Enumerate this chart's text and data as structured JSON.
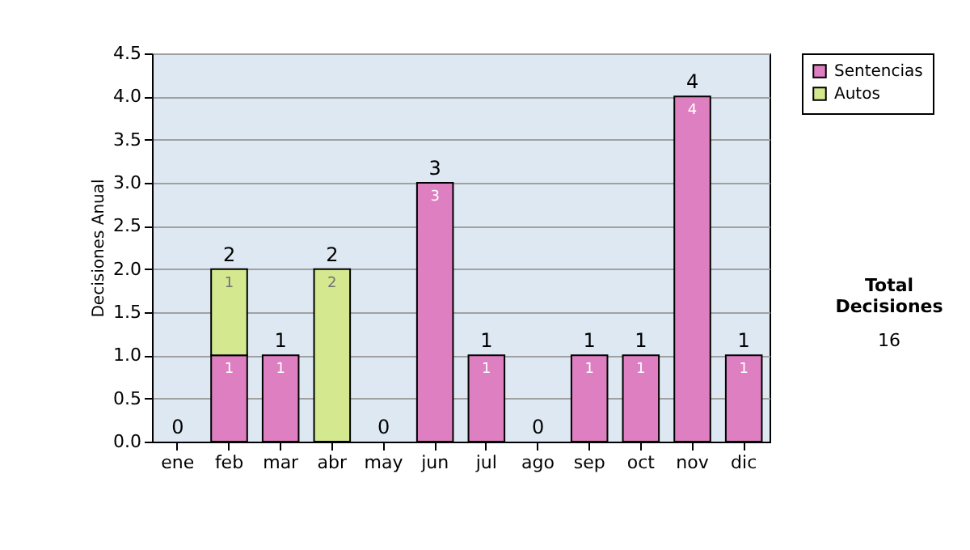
{
  "chart_data": {
    "type": "bar",
    "stacked": true,
    "ylabel": "Decisiones Anual",
    "categories": [
      "ene",
      "feb",
      "mar",
      "abr",
      "may",
      "jun",
      "jul",
      "ago",
      "sep",
      "oct",
      "nov",
      "dic"
    ],
    "series": [
      {
        "name": "Sentencias",
        "color": "#dd7fc0",
        "values": [
          0,
          1,
          1,
          0,
          0,
          3,
          1,
          0,
          1,
          1,
          4,
          1
        ],
        "value_labels": [
          null,
          "1",
          "1",
          null,
          null,
          "3",
          "1",
          null,
          "1",
          "1",
          "4",
          "1"
        ]
      },
      {
        "name": "Autos",
        "color": "#d4e98f",
        "values": [
          0,
          1,
          0,
          2,
          0,
          0,
          0,
          0,
          0,
          0,
          0,
          0
        ],
        "value_labels": [
          null,
          "1",
          null,
          "2",
          null,
          null,
          null,
          null,
          null,
          null,
          null,
          null
        ]
      }
    ],
    "totals": [
      "0",
      "2",
      "1",
      "2",
      "0",
      "3",
      "1",
      "0",
      "1",
      "1",
      "4",
      "1"
    ],
    "ylim": [
      0,
      4.5
    ],
    "yticks": [
      {
        "value": 0,
        "label": "0.0"
      },
      {
        "value": 0.5,
        "label": "0.5"
      },
      {
        "value": 1,
        "label": "1.0"
      },
      {
        "value": 1.5,
        "label": "1.5"
      },
      {
        "value": 2,
        "label": "2.0"
      },
      {
        "value": 2.5,
        "label": "2.5"
      },
      {
        "value": 3,
        "label": "3.0"
      },
      {
        "value": 3.5,
        "label": "3.5"
      },
      {
        "value": 4,
        "label": "4.0"
      },
      {
        "value": 4.5,
        "label": "4.5"
      }
    ],
    "grid": "y",
    "legend": "right",
    "annotations": [
      "Total Decisiones",
      "16"
    ]
  }
}
